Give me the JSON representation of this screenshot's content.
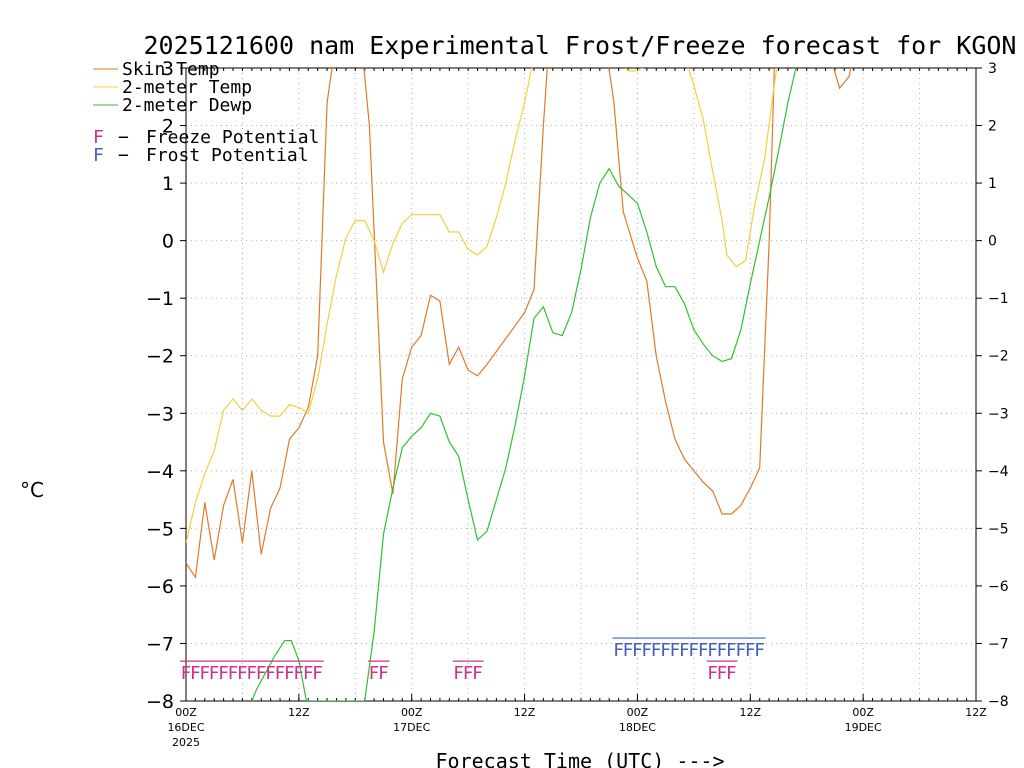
{
  "chart_data": {
    "type": "line",
    "title": "2025121600 nam Experimental Frost/Freeze forecast for KGON",
    "xlabel": "Forecast Time (UTC) --->",
    "ylabel": "oC",
    "ylim": [
      -8,
      3
    ],
    "xlim": [
      0,
      84
    ],
    "yticks": [
      -8,
      -7,
      -6,
      -5,
      -4,
      -3,
      -2,
      -1,
      0,
      1,
      2,
      3
    ],
    "yticklabels": [
      "−8",
      "−7",
      "−6",
      "−5",
      "−4",
      "−3",
      "−2",
      "−1",
      "0",
      "1",
      "2",
      "3"
    ],
    "xticks": [
      {
        "x": 0,
        "label": "00Z",
        "date": "16DEC",
        "year": "2025"
      },
      {
        "x": 12,
        "label": "12Z",
        "date": "",
        "year": ""
      },
      {
        "x": 24,
        "label": "00Z",
        "date": "17DEC",
        "year": ""
      },
      {
        "x": 36,
        "label": "12Z",
        "date": "",
        "year": ""
      },
      {
        "x": 48,
        "label": "00Z",
        "date": "18DEC",
        "year": ""
      },
      {
        "x": 60,
        "label": "12Z",
        "date": "",
        "year": ""
      },
      {
        "x": 72,
        "label": "00Z",
        "date": "19DEC",
        "year": ""
      },
      {
        "x": 84,
        "label": "12Z",
        "date": "",
        "year": ""
      }
    ],
    "grid": true,
    "series": [
      {
        "name": "Skin Temp",
        "color": "#e07a2a",
        "points": [
          [
            0,
            -5.6
          ],
          [
            1,
            -5.85
          ],
          [
            2,
            -4.55
          ],
          [
            3,
            -5.55
          ],
          [
            4,
            -4.6
          ],
          [
            5,
            -4.15
          ],
          [
            6,
            -5.25
          ],
          [
            7,
            -4.0
          ],
          [
            8,
            -5.45
          ],
          [
            9,
            -4.65
          ],
          [
            10,
            -4.3
          ],
          [
            11,
            -3.45
          ],
          [
            12,
            -3.25
          ],
          [
            13,
            -2.9
          ],
          [
            14,
            -2.0
          ],
          [
            15,
            2.4
          ],
          [
            15.7,
            3.2
          ],
          [
            18.8,
            3.2
          ],
          [
            19.5,
            2.0
          ],
          [
            21,
            -3.5
          ],
          [
            22,
            -4.4
          ],
          [
            23,
            -2.4
          ],
          [
            24,
            -1.85
          ],
          [
            25,
            -1.65
          ],
          [
            26,
            -0.95
          ],
          [
            27,
            -1.05
          ],
          [
            28,
            -2.15
          ],
          [
            29,
            -1.85
          ],
          [
            30,
            -2.25
          ],
          [
            31,
            -2.35
          ],
          [
            32,
            -2.15
          ],
          [
            34,
            -1.7
          ],
          [
            36,
            -1.25
          ],
          [
            37,
            -0.85
          ],
          [
            38,
            2.0
          ],
          [
            38.5,
            3.2
          ],
          [
            44.8,
            3.2
          ],
          [
            45.5,
            2.4
          ],
          [
            46.5,
            0.5
          ],
          [
            48,
            -0.3
          ],
          [
            49,
            -0.7
          ],
          [
            50,
            -2.0
          ],
          [
            51,
            -2.8
          ],
          [
            52,
            -3.45
          ],
          [
            53,
            -3.8
          ],
          [
            54,
            -4.0
          ],
          [
            55,
            -4.2
          ],
          [
            56,
            -4.35
          ],
          [
            57,
            -4.75
          ],
          [
            58,
            -4.75
          ],
          [
            59,
            -4.6
          ],
          [
            60,
            -4.3
          ],
          [
            61,
            -3.95
          ],
          [
            62,
            -0.05
          ],
          [
            62.6,
            3.2
          ],
          [
            68.5,
            3.2
          ],
          [
            69.5,
            2.65
          ],
          [
            70.5,
            2.85
          ],
          [
            71,
            3.2
          ]
        ]
      },
      {
        "name": "2-meter Temp",
        "color": "#f0d040",
        "points": [
          [
            0,
            -5.25
          ],
          [
            1,
            -4.55
          ],
          [
            2,
            -4.05
          ],
          [
            3,
            -3.65
          ],
          [
            4,
            -2.95
          ],
          [
            5,
            -2.75
          ],
          [
            6,
            -2.95
          ],
          [
            7,
            -2.75
          ],
          [
            8,
            -2.95
          ],
          [
            9,
            -3.05
          ],
          [
            10,
            -3.05
          ],
          [
            11,
            -2.85
          ],
          [
            12,
            -2.9
          ],
          [
            13,
            -3.0
          ],
          [
            14,
            -2.4
          ],
          [
            15,
            -1.45
          ],
          [
            16,
            -0.6
          ],
          [
            17,
            0.05
          ],
          [
            18,
            0.35
          ],
          [
            19,
            0.35
          ],
          [
            20,
            0.0
          ],
          [
            21,
            -0.55
          ],
          [
            22,
            -0.05
          ],
          [
            23,
            0.3
          ],
          [
            24,
            0.45
          ],
          [
            25,
            0.45
          ],
          [
            26,
            0.45
          ],
          [
            27,
            0.45
          ],
          [
            28,
            0.15
          ],
          [
            29,
            0.15
          ],
          [
            30,
            -0.15
          ],
          [
            31,
            -0.25
          ],
          [
            32,
            -0.1
          ],
          [
            33,
            0.4
          ],
          [
            34,
            1.0
          ],
          [
            35,
            1.75
          ],
          [
            36,
            2.4
          ],
          [
            37,
            3.2
          ],
          [
            46,
            3.2
          ],
          [
            47,
            2.95
          ],
          [
            48,
            2.95
          ],
          [
            49,
            3.05
          ],
          [
            50,
            3.05
          ],
          [
            51,
            3.2
          ],
          [
            53,
            3.2
          ],
          [
            54,
            2.7
          ],
          [
            55,
            2.1
          ],
          [
            56,
            1.2
          ],
          [
            57,
            0.35
          ],
          [
            57.5,
            -0.25
          ],
          [
            58.5,
            -0.45
          ],
          [
            59.5,
            -0.35
          ],
          [
            60.5,
            0.65
          ],
          [
            61.5,
            1.4
          ],
          [
            62.5,
            2.65
          ],
          [
            63,
            3.2
          ]
        ]
      },
      {
        "name": "2-meter Dewp",
        "color": "#30c030",
        "points": [
          [
            7,
            -8.0
          ],
          [
            7.5,
            -7.8
          ],
          [
            8.5,
            -7.5
          ],
          [
            9.5,
            -7.2
          ],
          [
            10.5,
            -6.95
          ],
          [
            11.2,
            -6.95
          ],
          [
            12,
            -7.3
          ],
          [
            12.8,
            -8.0
          ],
          [
            19,
            -8.0
          ],
          [
            20,
            -6.8
          ],
          [
            21,
            -5.1
          ],
          [
            22,
            -4.3
          ],
          [
            23,
            -3.6
          ],
          [
            24,
            -3.4
          ],
          [
            25,
            -3.25
          ],
          [
            26,
            -3.0
          ],
          [
            27,
            -3.05
          ],
          [
            28,
            -3.5
          ],
          [
            29,
            -3.75
          ],
          [
            30,
            -4.5
          ],
          [
            31,
            -5.2
          ],
          [
            32,
            -5.05
          ],
          [
            33,
            -4.5
          ],
          [
            34,
            -3.95
          ],
          [
            35,
            -3.2
          ],
          [
            36,
            -2.35
          ],
          [
            37,
            -1.35
          ],
          [
            38,
            -1.15
          ],
          [
            39,
            -1.6
          ],
          [
            40,
            -1.65
          ],
          [
            41,
            -1.25
          ],
          [
            42,
            -0.5
          ],
          [
            43,
            0.4
          ],
          [
            44,
            1.0
          ],
          [
            45,
            1.25
          ],
          [
            46,
            0.95
          ],
          [
            47,
            0.8
          ],
          [
            48,
            0.65
          ],
          [
            49,
            0.15
          ],
          [
            50,
            -0.45
          ],
          [
            51,
            -0.8
          ],
          [
            52,
            -0.8
          ],
          [
            53,
            -1.1
          ],
          [
            54,
            -1.55
          ],
          [
            55,
            -1.8
          ],
          [
            56,
            -2.0
          ],
          [
            57,
            -2.1
          ],
          [
            58,
            -2.05
          ],
          [
            59,
            -1.55
          ],
          [
            60,
            -0.75
          ],
          [
            61,
            0.0
          ],
          [
            62,
            0.75
          ],
          [
            63,
            1.55
          ],
          [
            64,
            2.4
          ],
          [
            65,
            3.1
          ],
          [
            65.5,
            3.2
          ]
        ]
      }
    ],
    "legend": [
      {
        "label": "Skin Temp",
        "color": "#e07a2a"
      },
      {
        "label": "2-meter Temp",
        "color": "#f0d040"
      },
      {
        "label": "2-meter Dewp",
        "color": "#30c030"
      }
    ],
    "flags": [
      {
        "letter": "F",
        "label": "Freeze Potential",
        "color": "#d0308a",
        "y": -7.55
      },
      {
        "letter": "F",
        "label": "Frost Potential",
        "color": "#4060c0",
        "y": -7.15
      }
    ],
    "freeze_potential_hours": [
      0,
      1,
      2,
      3,
      4,
      5,
      6,
      7,
      8,
      9,
      10,
      11,
      12,
      13,
      14,
      20,
      21,
      29,
      30,
      31,
      56,
      57,
      58
    ],
    "frost_potential_hours": [
      46,
      47,
      48,
      49,
      50,
      51,
      52,
      53,
      54,
      55,
      56,
      57,
      58,
      59,
      60,
      61
    ]
  }
}
